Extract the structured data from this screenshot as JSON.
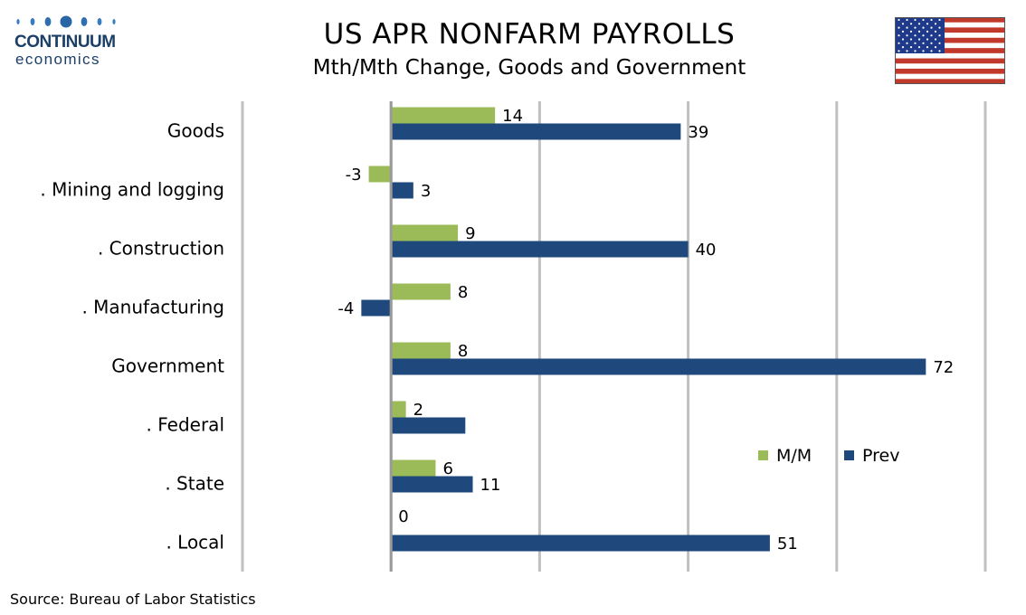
{
  "header": {
    "logo_word1": "CONTINUUM",
    "logo_word2": "economics",
    "title": "US APR NONFARM PAYROLLS",
    "subtitle": "Mth/Mth Change, Goods and Government",
    "flag_icon": "us-flag-icon"
  },
  "footer": {
    "source": "Source: Bureau of Labor Statistics"
  },
  "colors": {
    "mm": "#9bbb59",
    "prev": "#1f497d",
    "grid": "#c0c0c0",
    "logo": "#1b3f66"
  },
  "chart_data": {
    "type": "bar",
    "orientation": "horizontal",
    "categories": [
      "Goods",
      ". Mining and logging",
      ". Construction",
      ". Manufacturing",
      "Government",
      ". Federal",
      ". State",
      ". Local"
    ],
    "series": [
      {
        "name": "M/M",
        "values": [
          14,
          -3,
          9,
          8,
          8,
          2,
          6,
          0
        ]
      },
      {
        "name": "Prev",
        "values": [
          39,
          3,
          40,
          -4,
          72,
          10,
          11,
          51
        ]
      }
    ],
    "data_labels": {
      "M/M": [
        "14",
        "-3",
        "9",
        "8",
        "8",
        "2",
        "6",
        "0"
      ],
      "Prev": [
        "39",
        "3",
        "40",
        "-4",
        "72",
        "",
        "11",
        "51"
      ]
    },
    "xlim": [
      -20,
      80
    ],
    "grid": true,
    "legend_position": "bottom-right"
  }
}
